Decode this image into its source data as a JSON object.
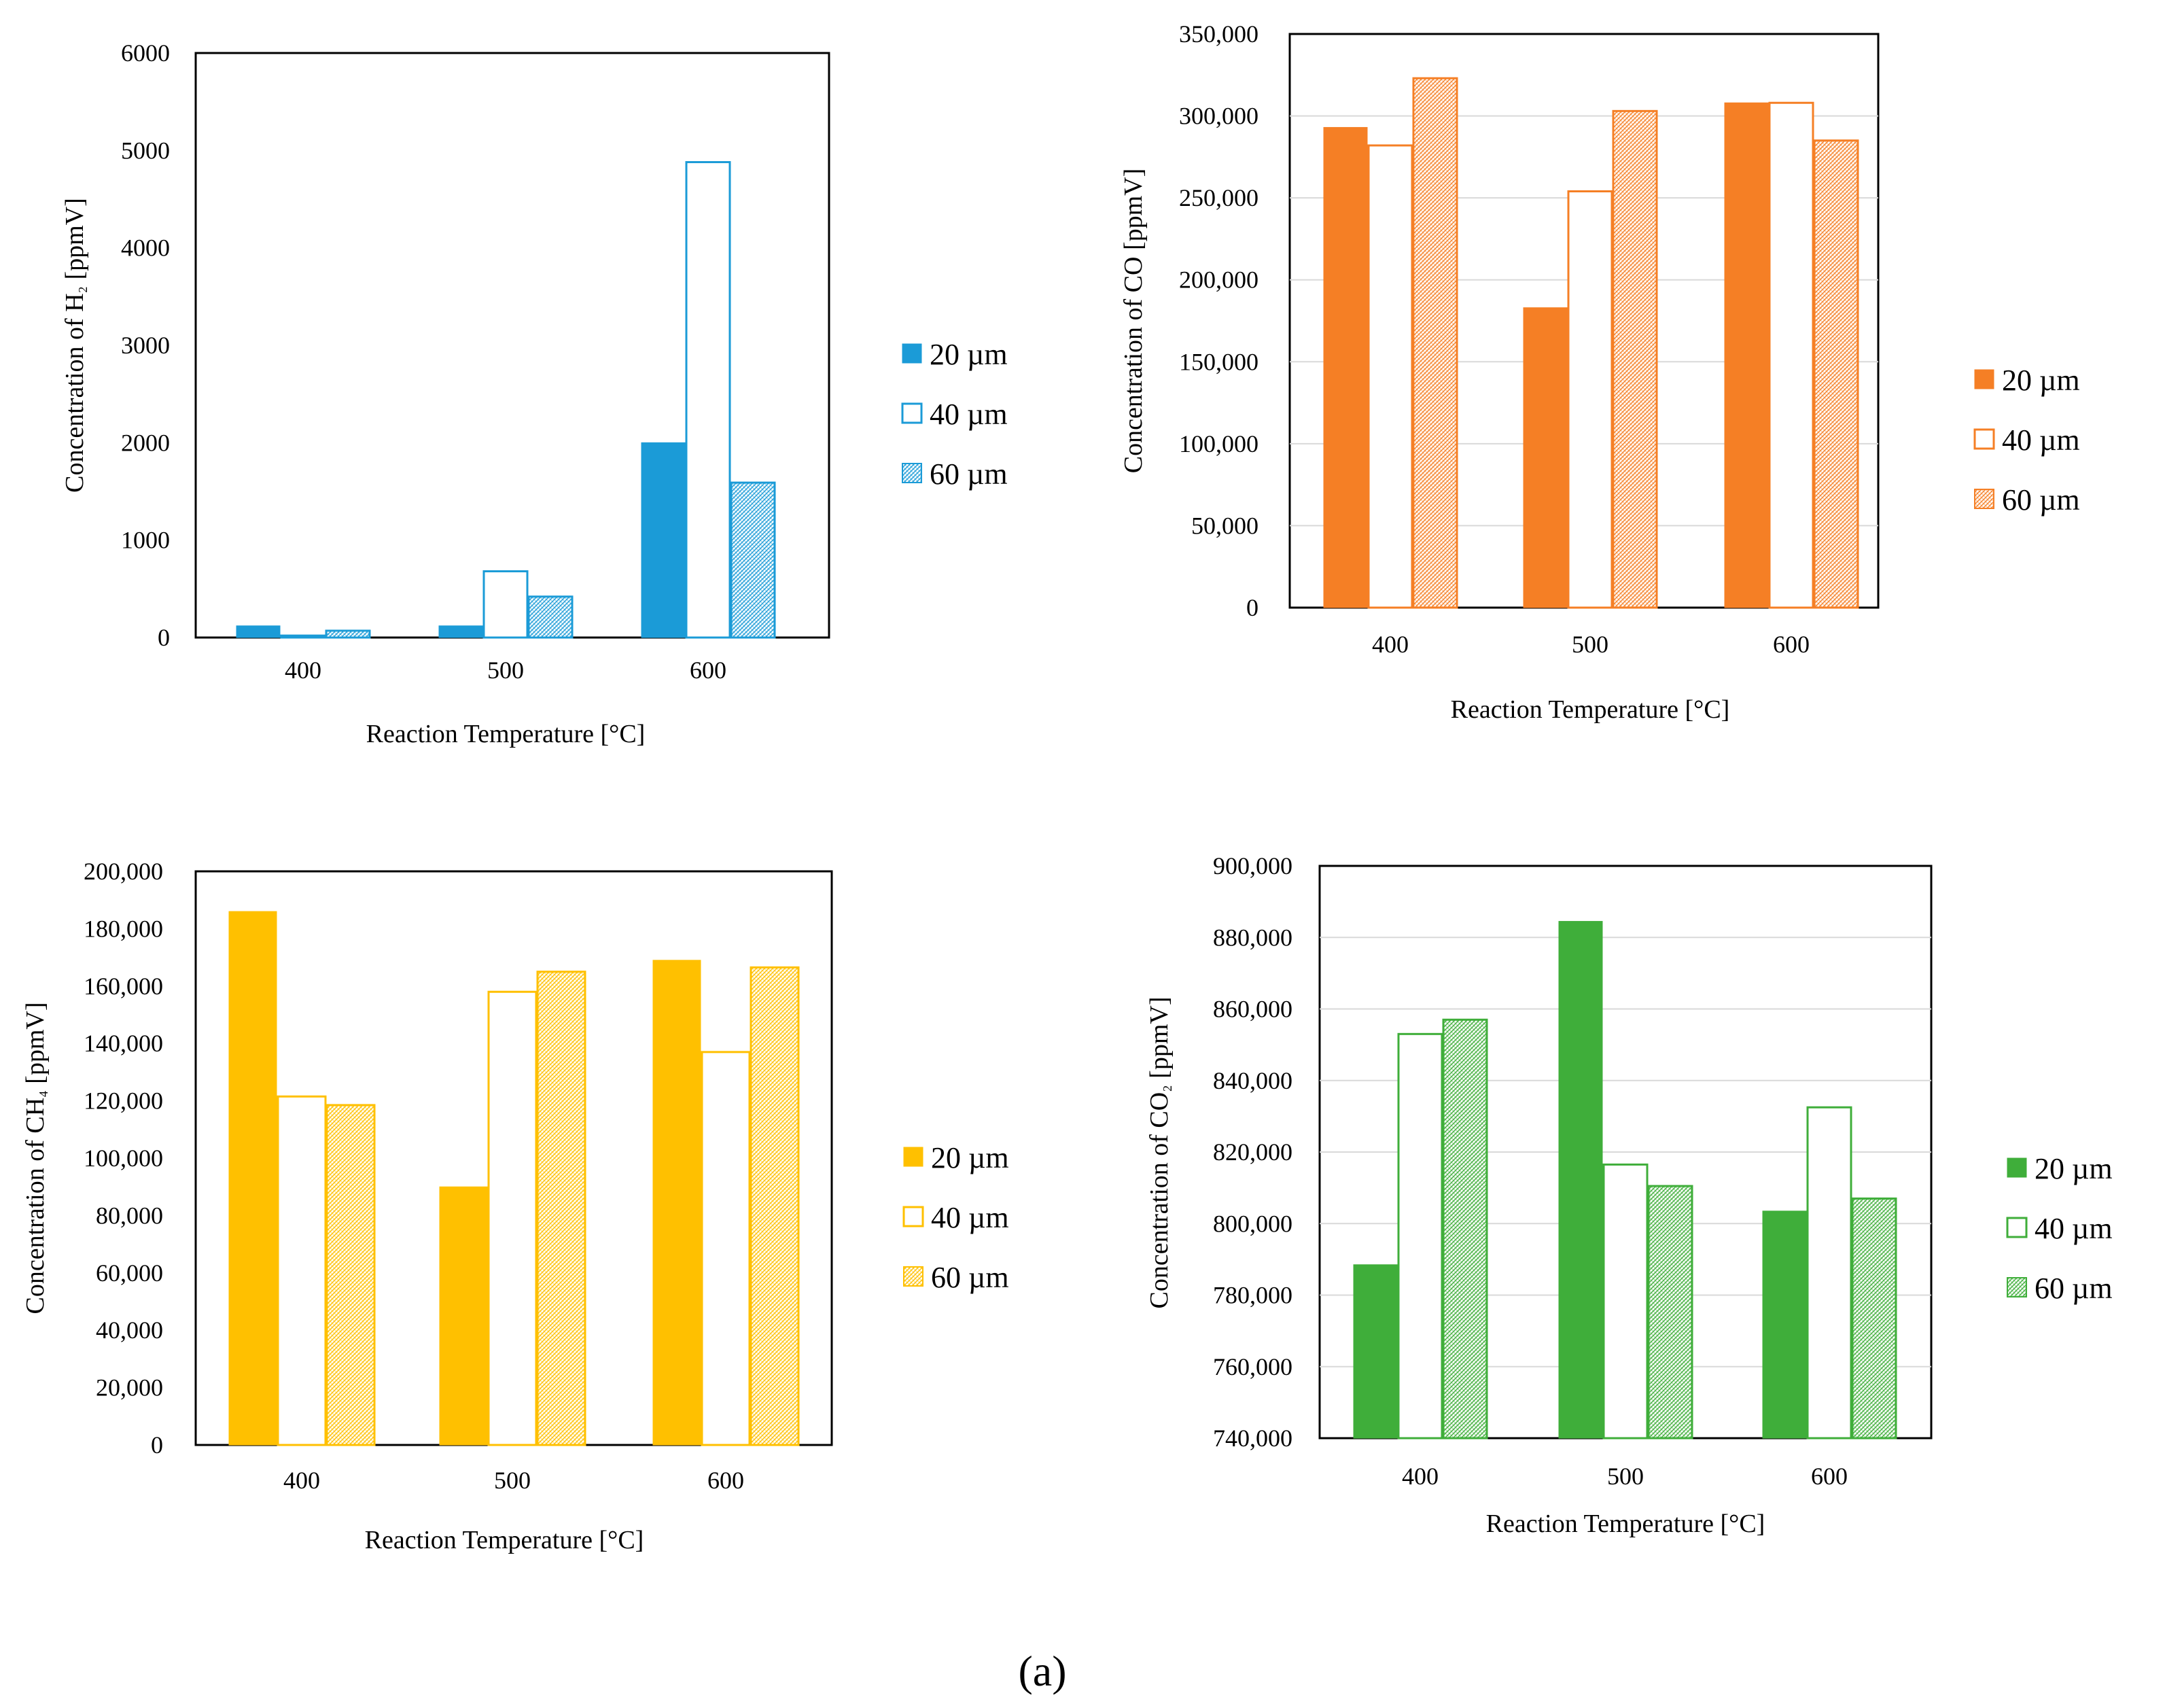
{
  "caption": "(a)",
  "chart_data": [
    {
      "type": "bar",
      "id": "h2",
      "title": "",
      "ylabel_parts": [
        "Concentration of H",
        "₂",
        " [ppmV]"
      ],
      "ylabel": "Concentration of H₂ [ppmV]",
      "xlabel": "Reaction Temperature [°C]",
      "categories": [
        "400",
        "500",
        "600"
      ],
      "ylim": [
        0,
        6000
      ],
      "yticks": [
        0,
        1000,
        2000,
        3000,
        4000,
        5000,
        6000
      ],
      "ytick_labels": [
        "0",
        "1000",
        "2000",
        "3000",
        "4000",
        "5000",
        "6000"
      ],
      "color": "#1b9bd7",
      "grid": false,
      "legend_position": "right",
      "series": [
        {
          "name": "20 µm",
          "style": "solid",
          "values": [
            120,
            120,
            2000
          ]
        },
        {
          "name": "40 µm",
          "style": "outline",
          "values": [
            20,
            680,
            4880
          ]
        },
        {
          "name": "60 µm",
          "style": "hatched",
          "values": [
            70,
            420,
            1590
          ]
        }
      ]
    },
    {
      "type": "bar",
      "id": "co",
      "title": "",
      "ylabel_parts": [
        "Concentration of CO [ppmV]"
      ],
      "ylabel": "Concentration of CO [ppmV]",
      "xlabel": "Reaction Temperature [°C]",
      "categories": [
        "400",
        "500",
        "600"
      ],
      "ylim": [
        0,
        350000
      ],
      "yticks": [
        0,
        50000,
        100000,
        150000,
        200000,
        250000,
        300000,
        350000
      ],
      "ytick_labels": [
        "0",
        "50,000",
        "100,000",
        "150,000",
        "200,000",
        "250,000",
        "300,000",
        "350,000"
      ],
      "color": "#f57f25",
      "grid": true,
      "legend_position": "right",
      "series": [
        {
          "name": "20 µm",
          "style": "solid",
          "values": [
            293000,
            183000,
            308000
          ]
        },
        {
          "name": "40 µm",
          "style": "outline",
          "values": [
            282000,
            254000,
            308000
          ]
        },
        {
          "name": "60 µm",
          "style": "hatched",
          "values": [
            323000,
            303000,
            285000
          ]
        }
      ]
    },
    {
      "type": "bar",
      "id": "ch4",
      "title": "",
      "ylabel_parts": [
        "Concentration of CH",
        "₄",
        "  [ppmV]"
      ],
      "ylabel": "Concentration of CH₄ [ppmV]",
      "xlabel": "Reaction Temperature [°C]",
      "categories": [
        "400",
        "500",
        "600"
      ],
      "ylim": [
        0,
        200000
      ],
      "yticks": [
        0,
        20000,
        40000,
        60000,
        80000,
        100000,
        120000,
        140000,
        160000,
        180000,
        200000
      ],
      "ytick_labels": [
        "0",
        "20,000",
        "40,000",
        "60,000",
        "80,000",
        "100,000",
        "120,000",
        "140,000",
        "160,000",
        "180,000",
        "200,000"
      ],
      "color": "#ffc000",
      "grid": false,
      "legend_position": "right",
      "series": [
        {
          "name": "20 µm",
          "style": "solid",
          "values": [
            186000,
            90000,
            169000
          ]
        },
        {
          "name": "40 µm",
          "style": "outline",
          "values": [
            121500,
            158000,
            137000
          ]
        },
        {
          "name": "60 µm",
          "style": "hatched",
          "values": [
            118500,
            165000,
            166500
          ]
        }
      ]
    },
    {
      "type": "bar",
      "id": "co2",
      "title": "",
      "ylabel_parts": [
        "Concentration of  CO",
        "₂",
        " [ppmV]"
      ],
      "ylabel": "Concentration of CO₂ [ppmV]",
      "xlabel": "Reaction Temperature [°C]",
      "categories": [
        "400",
        "500",
        "600"
      ],
      "ylim": [
        740000,
        900000
      ],
      "yticks": [
        740000,
        760000,
        780000,
        800000,
        820000,
        840000,
        860000,
        880000,
        900000
      ],
      "ytick_labels": [
        "740,000",
        "760,000",
        "780,000",
        "800,000",
        "820,000",
        "840,000",
        "860,000",
        "880,000",
        "900,000"
      ],
      "color": "#3fae3a",
      "grid": true,
      "legend_position": "right",
      "series": [
        {
          "name": "20 µm",
          "style": "solid",
          "values": [
            788500,
            884500,
            803500
          ]
        },
        {
          "name": "40 µm",
          "style": "outline",
          "values": [
            853000,
            816500,
            832500
          ]
        },
        {
          "name": "60 µm",
          "style": "hatched",
          "values": [
            857000,
            810500,
            807000
          ]
        }
      ]
    }
  ]
}
